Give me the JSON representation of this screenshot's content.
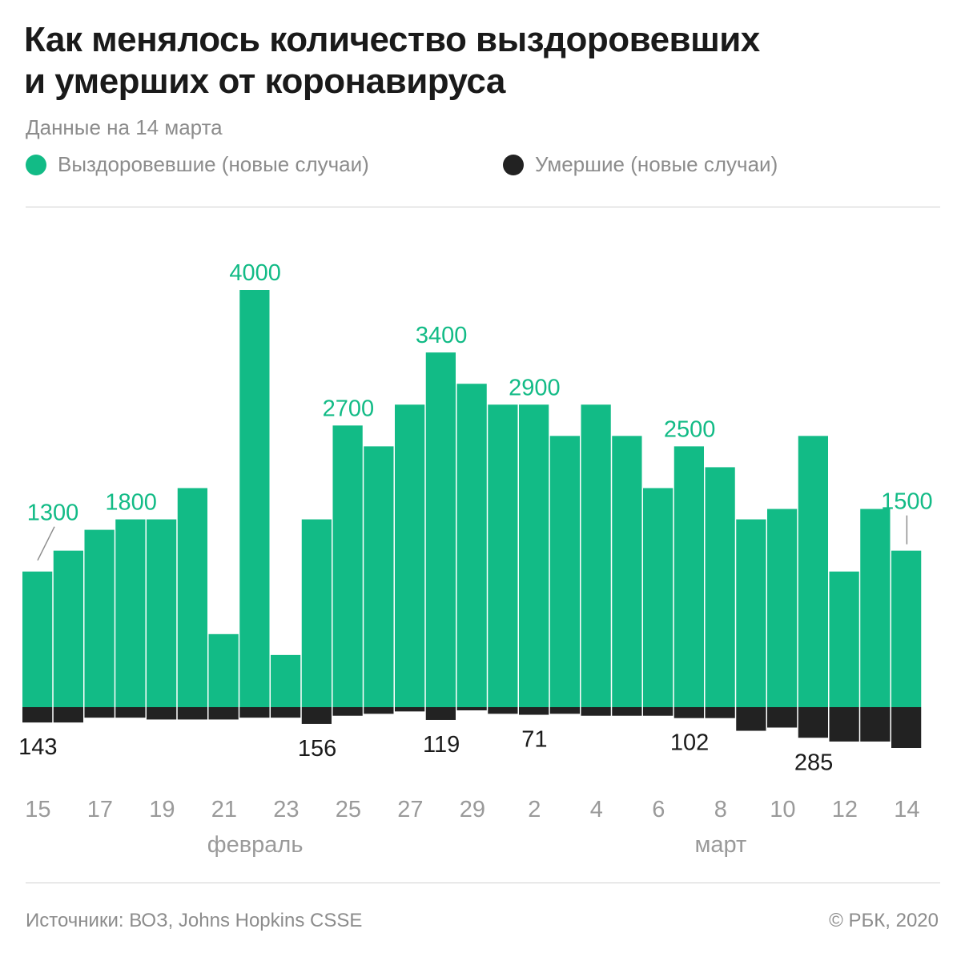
{
  "header": {
    "title_line1": "Как менялось количество выздоровевших",
    "title_line2": "и умерших от коронавируса",
    "subtitle": "Данные на 14 марта"
  },
  "legend": {
    "recovered": "Выздоровевшие (новые случаи)",
    "deaths": "Умершие (новые случаи)"
  },
  "colors": {
    "recovered": "#12bb86",
    "deaths": "#222222",
    "axis_text": "#9a9a9a",
    "leader": "#8c8c8c"
  },
  "footer": {
    "source": "Источники: ВОЗ, Johns Hopkins CSSE",
    "copyright": "© РБК, 2020"
  },
  "chart_data": {
    "type": "bar",
    "title": "Как менялось количество выздоровевших и умерших от коронавируса",
    "categories": [
      "15",
      "16",
      "17",
      "18",
      "19",
      "20",
      "21",
      "22",
      "23",
      "24",
      "25",
      "26",
      "27",
      "28",
      "29",
      "1",
      "2",
      "3",
      "4",
      "5",
      "6",
      "7",
      "8",
      "9",
      "10",
      "11",
      "12",
      "13",
      "14"
    ],
    "tick_labels": [
      "15",
      "17",
      "19",
      "21",
      "23",
      "25",
      "27",
      "29",
      "2",
      "4",
      "6",
      "8",
      "10",
      "12",
      "14"
    ],
    "month_labels": [
      {
        "label": "февраль",
        "category": "22"
      },
      {
        "label": "март",
        "category": "8"
      }
    ],
    "series": [
      {
        "name": "Выздоровевшие (новые случаи)",
        "direction": "up",
        "values": [
          1300,
          1500,
          1700,
          1800,
          1800,
          2100,
          700,
          4000,
          500,
          1800,
          2700,
          2500,
          2900,
          3400,
          3100,
          2900,
          2900,
          2600,
          2900,
          2600,
          2100,
          2500,
          2300,
          1800,
          1900,
          2600,
          1300,
          1900,
          1500
        ]
      },
      {
        "name": "Умершие (новые случаи)",
        "direction": "down",
        "values": [
          143,
          143,
          98,
          98,
          115,
          115,
          115,
          98,
          98,
          156,
          80,
          62,
          40,
          119,
          30,
          62,
          71,
          62,
          80,
          80,
          80,
          102,
          102,
          220,
          190,
          285,
          320,
          320,
          380
        ]
      }
    ],
    "annotations": [
      {
        "series": 0,
        "index": 0,
        "label": "1300",
        "leader": true
      },
      {
        "series": 0,
        "index": 3,
        "label": "1800"
      },
      {
        "series": 0,
        "index": 7,
        "label": "4000"
      },
      {
        "series": 0,
        "index": 10,
        "label": "2700"
      },
      {
        "series": 0,
        "index": 13,
        "label": "3400"
      },
      {
        "series": 0,
        "index": 16,
        "label": "2900"
      },
      {
        "series": 0,
        "index": 21,
        "label": "2500"
      },
      {
        "series": 0,
        "index": 28,
        "label": "1500",
        "leader": true
      },
      {
        "series": 1,
        "index": 0,
        "label": "143"
      },
      {
        "series": 1,
        "index": 9,
        "label": "156"
      },
      {
        "series": 1,
        "index": 13,
        "label": "119"
      },
      {
        "series": 1,
        "index": 16,
        "label": "71"
      },
      {
        "series": 1,
        "index": 21,
        "label": "102"
      },
      {
        "series": 1,
        "index": 25,
        "label": "285"
      }
    ],
    "ylim_recovered": [
      0,
      4000
    ],
    "grid": false
  }
}
